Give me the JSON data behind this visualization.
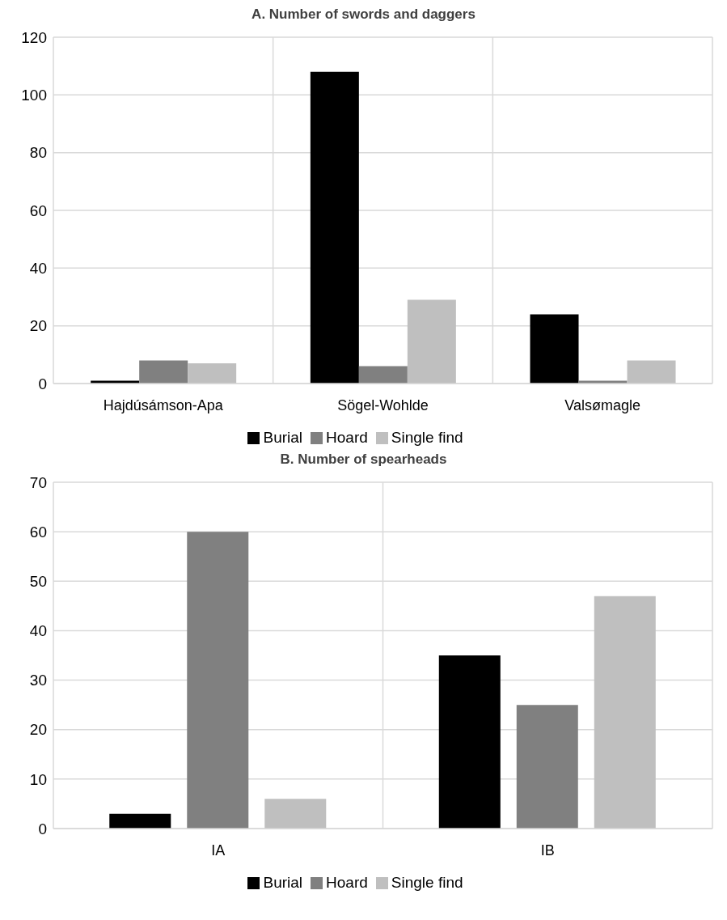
{
  "chart_data": [
    {
      "type": "bar",
      "title": "A. Number of swords and daggers",
      "categories": [
        "Hajdúsámson-Apa",
        "Sögel-Wohlde",
        "Valsømagle"
      ],
      "series": [
        {
          "name": "Burial",
          "color": "#000000",
          "values": [
            1,
            108,
            24
          ]
        },
        {
          "name": "Hoard",
          "color": "#808080",
          "values": [
            8,
            6,
            1
          ]
        },
        {
          "name": "Single find",
          "color": "#bfbfbf",
          "values": [
            7,
            29,
            8
          ]
        }
      ],
      "ylim": [
        0,
        120
      ],
      "yticks": [
        0,
        20,
        40,
        60,
        80,
        100,
        120
      ],
      "grid": true,
      "legend": "bottom"
    },
    {
      "type": "bar",
      "title": "B. Number of spearheads",
      "categories": [
        "IA",
        "IB"
      ],
      "series": [
        {
          "name": "Burial",
          "color": "#000000",
          "values": [
            3,
            35
          ]
        },
        {
          "name": "Hoard",
          "color": "#808080",
          "values": [
            60,
            25
          ]
        },
        {
          "name": "Single find",
          "color": "#bfbfbf",
          "values": [
            6,
            47
          ]
        }
      ],
      "ylim": [
        0,
        70
      ],
      "yticks": [
        0,
        10,
        20,
        30,
        40,
        50,
        60,
        70
      ],
      "grid": true,
      "legend": "bottom"
    }
  ]
}
